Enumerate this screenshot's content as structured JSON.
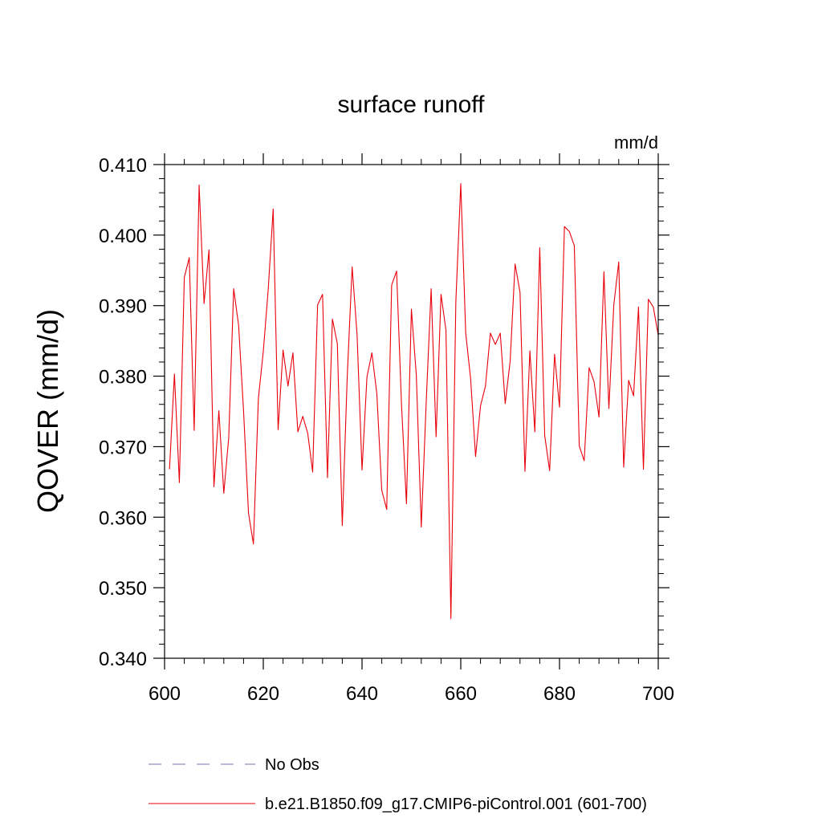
{
  "chart_data": {
    "type": "line",
    "title": "surface runoff",
    "units_label": "mm/d",
    "xlabel": "",
    "ylabel": "QOVER  (mm/d)",
    "xlim": [
      600,
      700
    ],
    "ylim": [
      0.34,
      0.41
    ],
    "x_ticks": [
      600,
      620,
      640,
      660,
      680,
      700
    ],
    "x_tick_labels": [
      "600",
      "620",
      "640",
      "660",
      "680",
      "700"
    ],
    "y_ticks": [
      0.34,
      0.35,
      0.36,
      0.37,
      0.38,
      0.39,
      0.4,
      0.41
    ],
    "y_tick_labels": [
      "0.340",
      "0.350",
      "0.360",
      "0.370",
      "0.380",
      "0.390",
      "0.400",
      "0.410"
    ],
    "grid": false,
    "legend_position": "bottom",
    "series": [
      {
        "name": "No Obs",
        "color": "#7b6fb0",
        "style": "dashed",
        "x": [],
        "values": []
      },
      {
        "name": "b.e21.B1850.f09_g17.CMIP6-piControl.001 (601-700)",
        "color": "#e8000b",
        "style": "solid",
        "x": [
          601,
          602,
          603,
          604,
          605,
          606,
          607,
          608,
          609,
          610,
          611,
          612,
          613,
          614,
          615,
          616,
          617,
          618,
          619,
          620,
          621,
          622,
          623,
          624,
          625,
          626,
          627,
          628,
          629,
          630,
          631,
          632,
          633,
          634,
          635,
          636,
          637,
          638,
          639,
          640,
          641,
          642,
          643,
          644,
          645,
          646,
          647,
          648,
          649,
          650,
          651,
          652,
          653,
          654,
          655,
          656,
          657,
          658,
          659,
          660,
          661,
          662,
          663,
          664,
          665,
          666,
          667,
          668,
          669,
          670,
          671,
          672,
          673,
          674,
          675,
          676,
          677,
          678,
          679,
          680,
          681,
          682,
          683,
          684,
          685,
          686,
          687,
          688,
          689,
          690,
          691,
          692,
          693,
          694,
          695,
          696,
          697,
          698,
          699,
          700
        ],
        "values": [
          0.3668,
          0.3803,
          0.3649,
          0.394,
          0.3968,
          0.3723,
          0.4071,
          0.3903,
          0.3979,
          0.3643,
          0.3751,
          0.3634,
          0.3713,
          0.3924,
          0.3872,
          0.3751,
          0.3606,
          0.3562,
          0.3768,
          0.3835,
          0.3923,
          0.4037,
          0.3724,
          0.3837,
          0.3786,
          0.3833,
          0.3721,
          0.3743,
          0.3719,
          0.3664,
          0.3901,
          0.3916,
          0.3656,
          0.3881,
          0.3846,
          0.3588,
          0.3799,
          0.3955,
          0.3858,
          0.3667,
          0.3799,
          0.3833,
          0.3775,
          0.3638,
          0.3611,
          0.3929,
          0.3949,
          0.3759,
          0.3619,
          0.3895,
          0.3801,
          0.3586,
          0.3763,
          0.3924,
          0.3714,
          0.3916,
          0.3865,
          0.3456,
          0.3905,
          0.4073,
          0.3861,
          0.3796,
          0.3686,
          0.3758,
          0.3786,
          0.3861,
          0.3845,
          0.3861,
          0.3761,
          0.3821,
          0.3959,
          0.3919,
          0.3665,
          0.3836,
          0.3721,
          0.3982,
          0.3716,
          0.3666,
          0.3831,
          0.3756,
          0.4012,
          0.4005,
          0.3985,
          0.3701,
          0.368,
          0.3812,
          0.3792,
          0.3742,
          0.3948,
          0.3754,
          0.3901,
          0.3962,
          0.3671,
          0.3794,
          0.3772,
          0.3898,
          0.3668,
          0.3909,
          0.3898,
          0.3858
        ]
      }
    ]
  }
}
